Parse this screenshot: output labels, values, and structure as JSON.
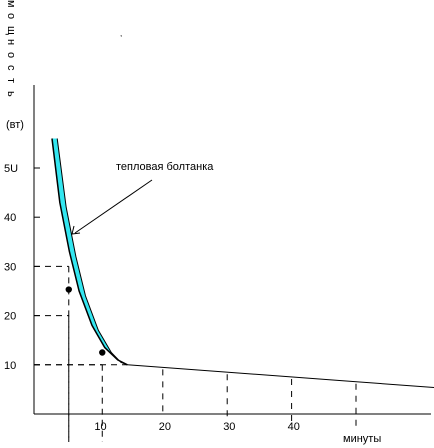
{
  "chart_data": {
    "type": "line",
    "title": "",
    "ylabel_letters": [
      "м",
      "о",
      "щ",
      "н",
      "о",
      "с",
      "т",
      "ь"
    ],
    "ylabel_unit": "(вт)",
    "xlabel": "минуты",
    "annotation": "тепловая болтанка",
    "y_ticks": [
      "5U",
      "40",
      "30",
      "20",
      "10"
    ],
    "x_ticks": [
      "10",
      "20",
      "30",
      "40"
    ],
    "xlim": [
      0,
      64
    ],
    "ylim": [
      0,
      60
    ],
    "band_upper": {
      "x": [
        3.6,
        5,
        6.5,
        8,
        10,
        12,
        13.5,
        14.5
      ],
      "y": [
        56,
        42,
        32,
        24,
        17,
        12.5,
        10.5,
        10
      ]
    },
    "band_lower": {
      "x": [
        2.8,
        4,
        5.5,
        7,
        9,
        11,
        13,
        14.5
      ],
      "y": [
        56,
        43,
        33,
        25,
        18,
        13.5,
        11,
        10
      ]
    },
    "tail": {
      "x": [
        14.5,
        64
      ],
      "y": [
        10,
        5.2
      ]
    },
    "points": [
      {
        "x": 5.4,
        "y": 25.3
      },
      {
        "x": 10.6,
        "y": 12.5
      }
    ],
    "guides": [
      {
        "x": 5.4,
        "y": 30
      },
      {
        "x": 5.4,
        "y": 20
      },
      {
        "x": 10.6,
        "y": 10
      }
    ],
    "tail_ticks": [
      20,
      30,
      40,
      50
    ],
    "colors": {
      "band_fill": "#33e6f0",
      "line": "#000000"
    }
  }
}
